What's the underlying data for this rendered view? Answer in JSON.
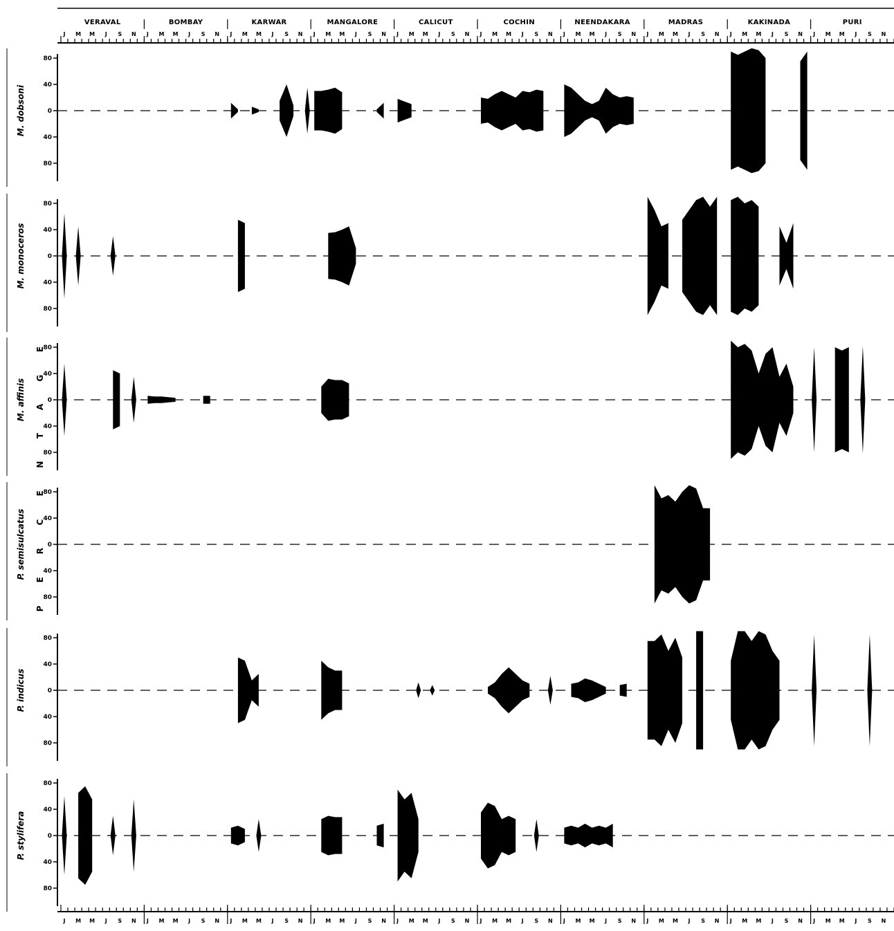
{
  "stations": [
    "VERAVAL",
    "BOMBAY",
    "KARWAR",
    "MANGALORE",
    "CALICUT",
    "COCHIN",
    "NEENDAKARA",
    "MADRAS",
    "KAKINADA",
    "PURI"
  ],
  "month_initials": [
    "J",
    "M",
    "M",
    "J",
    "S",
    "N"
  ],
  "percent_label": [
    "P",
    "E",
    "R",
    "C",
    "E",
    "N",
    "T",
    "A",
    "G",
    "E"
  ],
  "chart_data": {
    "type": "area",
    "note_axis": "12 months (Jan to Dec) per station; symmetric bands show percentage composition",
    "ytick_labels": [
      "80",
      "40",
      "0",
      "40",
      "80"
    ],
    "ylim": [
      -90,
      90
    ],
    "series": [
      {
        "name": "M. dobsoni",
        "stations": {
          "VERAVAL": [
            0,
            0,
            0,
            0,
            0,
            0,
            0,
            0,
            0,
            0,
            0,
            0
          ],
          "BOMBAY": [
            0,
            0,
            0,
            0,
            0,
            0,
            0,
            0,
            0,
            0,
            0,
            0
          ],
          "KARWAR": [
            12,
            2,
            0,
            6,
            2,
            0,
            0,
            15,
            40,
            8,
            0,
            35
          ],
          "MANGALORE": [
            30,
            30,
            32,
            35,
            28,
            0,
            0,
            0,
            0,
            2,
            12,
            0
          ],
          "CALICUT": [
            18,
            14,
            10,
            0,
            0,
            0,
            0,
            0,
            0,
            0,
            0,
            0
          ],
          "COCHIN": [
            20,
            18,
            25,
            30,
            25,
            20,
            30,
            28,
            32,
            30,
            0,
            0
          ],
          "NEENDAKARA": [
            40,
            35,
            25,
            15,
            10,
            15,
            35,
            25,
            20,
            22,
            20,
            0
          ],
          "MADRAS": [
            0,
            0,
            0,
            0,
            0,
            0,
            0,
            0,
            0,
            0,
            0,
            0
          ],
          "KAKINADA": [
            90,
            85,
            90,
            95,
            92,
            80,
            0,
            0,
            0,
            0,
            75,
            90
          ],
          "PURI": [
            0,
            0,
            0,
            0,
            0,
            0,
            0,
            0,
            0,
            0,
            0,
            0
          ]
        }
      },
      {
        "name": "M. monoceros",
        "stations": {
          "VERAVAL": [
            65,
            0,
            45,
            0,
            0,
            0,
            0,
            30,
            0,
            0,
            0,
            0
          ],
          "BOMBAY": [
            0,
            0,
            0,
            0,
            0,
            0,
            0,
            0,
            0,
            0,
            0,
            0
          ],
          "KARWAR": [
            0,
            55,
            50,
            0,
            0,
            0,
            0,
            0,
            0,
            0,
            0,
            0
          ],
          "MANGALORE": [
            0,
            0,
            35,
            36,
            40,
            45,
            12,
            0,
            0,
            0,
            0,
            0
          ],
          "CALICUT": [
            0,
            0,
            0,
            0,
            0,
            0,
            0,
            0,
            0,
            0,
            0,
            0
          ],
          "COCHIN": [
            0,
            0,
            0,
            0,
            0,
            0,
            0,
            0,
            0,
            0,
            0,
            0
          ],
          "NEENDAKARA": [
            0,
            0,
            0,
            0,
            0,
            0,
            0,
            0,
            0,
            0,
            0,
            0
          ],
          "MADRAS": [
            90,
            70,
            45,
            50,
            0,
            55,
            70,
            85,
            90,
            75,
            90,
            0
          ],
          "KAKINADA": [
            85,
            90,
            80,
            85,
            75,
            0,
            0,
            45,
            20,
            50,
            0,
            0
          ],
          "PURI": [
            0,
            0,
            0,
            0,
            0,
            0,
            0,
            0,
            0,
            0,
            0,
            0
          ]
        }
      },
      {
        "name": "M. affinis",
        "stations": {
          "VERAVAL": [
            55,
            0,
            0,
            0,
            0,
            0,
            0,
            45,
            40,
            0,
            35,
            0
          ],
          "BOMBAY": [
            6,
            5,
            5,
            4,
            3,
            0,
            0,
            0,
            6,
            6,
            0,
            0
          ],
          "KARWAR": [
            0,
            0,
            0,
            0,
            0,
            0,
            0,
            0,
            0,
            0,
            0,
            0
          ],
          "MANGALORE": [
            0,
            20,
            32,
            30,
            30,
            25,
            0,
            0,
            0,
            0,
            0,
            0
          ],
          "CALICUT": [
            0,
            0,
            0,
            0,
            0,
            0,
            0,
            0,
            0,
            0,
            0,
            0
          ],
          "COCHIN": [
            0,
            0,
            0,
            0,
            0,
            0,
            0,
            0,
            0,
            0,
            0,
            0
          ],
          "NEENDAKARA": [
            0,
            0,
            0,
            0,
            0,
            0,
            0,
            0,
            0,
            0,
            0,
            0
          ],
          "MADRAS": [
            0,
            0,
            0,
            0,
            0,
            0,
            0,
            0,
            0,
            0,
            0,
            0
          ],
          "KAKINADA": [
            90,
            80,
            85,
            75,
            40,
            70,
            80,
            35,
            55,
            20,
            0,
            0
          ],
          "PURI": [
            80,
            0,
            0,
            80,
            75,
            80,
            0,
            82,
            0,
            0,
            0,
            0
          ]
        }
      },
      {
        "name": "P. semisulcatus",
        "stations": {
          "VERAVAL": [
            0,
            0,
            0,
            0,
            0,
            0,
            0,
            0,
            0,
            0,
            0,
            0
          ],
          "BOMBAY": [
            0,
            0,
            0,
            0,
            0,
            0,
            0,
            0,
            0,
            0,
            0,
            0
          ],
          "KARWAR": [
            0,
            0,
            0,
            0,
            0,
            0,
            0,
            0,
            0,
            0,
            0,
            0
          ],
          "MANGALORE": [
            0,
            0,
            0,
            0,
            0,
            0,
            0,
            0,
            0,
            0,
            0,
            0
          ],
          "CALICUT": [
            0,
            0,
            0,
            0,
            0,
            0,
            0,
            0,
            0,
            0,
            0,
            0
          ],
          "COCHIN": [
            0,
            0,
            0,
            0,
            0,
            0,
            0,
            0,
            0,
            0,
            0,
            0
          ],
          "NEENDAKARA": [
            0,
            0,
            0,
            0,
            0,
            0,
            0,
            0,
            0,
            0,
            0,
            0
          ],
          "MADRAS": [
            0,
            90,
            70,
            75,
            65,
            80,
            90,
            85,
            55,
            55,
            0,
            0
          ],
          "KAKINADA": [
            0,
            0,
            0,
            0,
            0,
            0,
            0,
            0,
            0,
            0,
            0,
            0
          ],
          "PURI": [
            0,
            0,
            0,
            0,
            0,
            0,
            0,
            0,
            0,
            0,
            0,
            0
          ]
        }
      },
      {
        "name": "P. indicus",
        "stations": {
          "VERAVAL": [
            0,
            0,
            0,
            0,
            0,
            0,
            0,
            0,
            0,
            0,
            0,
            0
          ],
          "BOMBAY": [
            0,
            0,
            0,
            0,
            0,
            0,
            0,
            0,
            0,
            0,
            0,
            0
          ],
          "KARWAR": [
            0,
            50,
            45,
            15,
            25,
            0,
            0,
            0,
            0,
            0,
            0,
            0
          ],
          "MANGALORE": [
            0,
            45,
            35,
            30,
            30,
            0,
            0,
            0,
            0,
            0,
            0,
            0
          ],
          "CALICUT": [
            0,
            0,
            0,
            12,
            0,
            8,
            0,
            0,
            0,
            0,
            0,
            0
          ],
          "COCHIN": [
            0,
            5,
            12,
            25,
            35,
            25,
            15,
            10,
            0,
            0,
            22,
            0
          ],
          "NEENDAKARA": [
            0,
            10,
            12,
            18,
            15,
            10,
            5,
            0,
            8,
            10,
            0,
            0
          ],
          "MADRAS": [
            75,
            75,
            85,
            60,
            80,
            50,
            0,
            90,
            90,
            0,
            0,
            0
          ],
          "KAKINADA": [
            45,
            90,
            90,
            75,
            90,
            85,
            60,
            45,
            0,
            0,
            0,
            0
          ],
          "PURI": [
            85,
            0,
            0,
            0,
            0,
            0,
            0,
            0,
            85,
            0,
            0,
            0
          ]
        }
      },
      {
        "name": "P. stylifera",
        "stations": {
          "VERAVAL": [
            60,
            0,
            65,
            75,
            55,
            0,
            0,
            30,
            0,
            0,
            55,
            0
          ],
          "BOMBAY": [
            0,
            0,
            0,
            0,
            0,
            0,
            0,
            0,
            0,
            0,
            0,
            0
          ],
          "KARWAR": [
            12,
            15,
            10,
            0,
            25,
            0,
            0,
            0,
            0,
            0,
            0,
            0
          ],
          "MANGALORE": [
            0,
            25,
            30,
            28,
            28,
            0,
            0,
            0,
            0,
            15,
            18,
            0
          ],
          "CALICUT": [
            70,
            55,
            65,
            25,
            0,
            0,
            0,
            0,
            0,
            0,
            0,
            0
          ],
          "COCHIN": [
            35,
            50,
            45,
            25,
            30,
            25,
            0,
            0,
            25,
            0,
            0,
            0
          ],
          "NEENDAKARA": [
            12,
            15,
            12,
            18,
            12,
            15,
            12,
            18,
            0,
            0,
            0,
            0
          ],
          "MADRAS": [
            0,
            0,
            0,
            0,
            0,
            0,
            0,
            0,
            0,
            0,
            0,
            0
          ],
          "KAKINADA": [
            0,
            0,
            0,
            0,
            0,
            0,
            0,
            0,
            0,
            0,
            0,
            0
          ],
          "PURI": [
            0,
            0,
            0,
            0,
            0,
            0,
            0,
            0,
            0,
            0,
            0,
            0
          ]
        }
      }
    ]
  }
}
